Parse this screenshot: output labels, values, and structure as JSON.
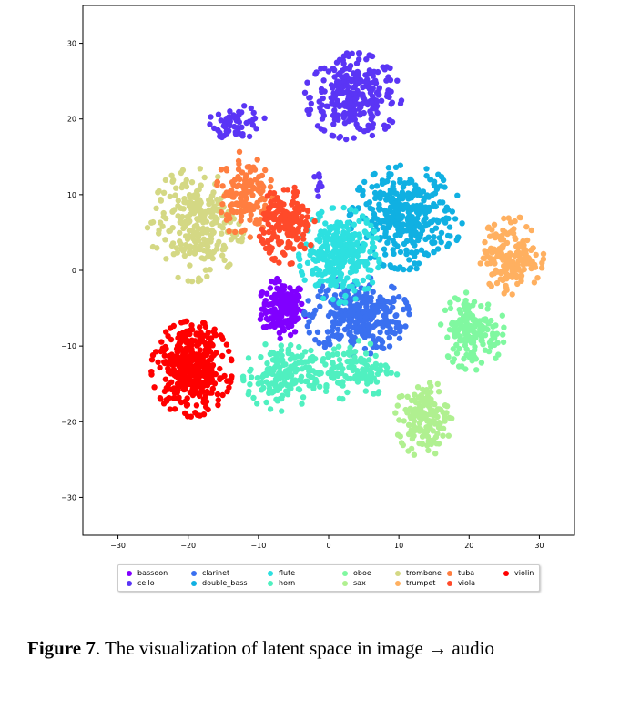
{
  "chart_data": {
    "type": "scatter",
    "title": "",
    "xlabel": "",
    "ylabel": "",
    "xlim": [
      -35,
      35
    ],
    "ylim": [
      -35,
      35
    ],
    "xticks": [
      -30,
      -20,
      -10,
      0,
      10,
      20,
      30
    ],
    "yticks": [
      30,
      20,
      10,
      0,
      -10,
      -20,
      -30
    ],
    "xtick_labels": [
      "−30",
      "−20",
      "−10",
      "0",
      "10",
      "20",
      "30"
    ],
    "ytick_labels": [
      "30",
      "20",
      "10",
      "0",
      "−10",
      "−20",
      "−30"
    ],
    "grid": false,
    "legend_position": "bottom-center, below plot",
    "series": [
      {
        "name": "bassoon",
        "color": "#8000ff",
        "clusters": [
          {
            "cx": -6.5,
            "cy": -5,
            "rx": 3,
            "ry": 3.5,
            "n": 170
          }
        ]
      },
      {
        "name": "cello",
        "color": "#5a35f5",
        "clusters": [
          {
            "cx": 3.5,
            "cy": 23,
            "rx": 6,
            "ry": 5,
            "n": 280
          },
          {
            "cx": -13,
            "cy": 19.5,
            "rx": 3.5,
            "ry": 2,
            "n": 60
          },
          {
            "cx": -1.5,
            "cy": 11.5,
            "rx": 0.8,
            "ry": 1.5,
            "n": 10
          }
        ]
      },
      {
        "name": "clarinet",
        "color": "#3a70f0",
        "clusters": [
          {
            "cx": 4,
            "cy": -6,
            "rx": 6.5,
            "ry": 4.5,
            "n": 300
          }
        ]
      },
      {
        "name": "double_bass",
        "color": "#10b0e2",
        "clusters": [
          {
            "cx": 11,
            "cy": 7,
            "rx": 7,
            "ry": 6,
            "n": 360
          }
        ]
      },
      {
        "name": "flute",
        "color": "#2de0e0",
        "clusters": [
          {
            "cx": 1.5,
            "cy": 2,
            "rx": 5,
            "ry": 5.5,
            "n": 280
          }
        ]
      },
      {
        "name": "horn",
        "color": "#50f0c0",
        "clusters": [
          {
            "cx": -7,
            "cy": -14,
            "rx": 4.5,
            "ry": 4,
            "n": 160
          },
          {
            "cx": 3,
            "cy": -13,
            "rx": 6,
            "ry": 3.5,
            "n": 130
          }
        ]
      },
      {
        "name": "oboe",
        "color": "#80f8a0",
        "clusters": [
          {
            "cx": 20.5,
            "cy": -8,
            "rx": 4,
            "ry": 4.5,
            "n": 160
          }
        ]
      },
      {
        "name": "sax",
        "color": "#b0f090",
        "clusters": [
          {
            "cx": 13.5,
            "cy": -19.5,
            "rx": 3.5,
            "ry": 4.5,
            "n": 150
          }
        ]
      },
      {
        "name": "trombone",
        "color": "#d4d884",
        "clusters": [
          {
            "cx": -19,
            "cy": 6,
            "rx": 6,
            "ry": 6.5,
            "n": 260
          }
        ]
      },
      {
        "name": "trumpet",
        "color": "#ffb060",
        "clusters": [
          {
            "cx": 26,
            "cy": 2,
            "rx": 4,
            "ry": 4.5,
            "n": 180
          }
        ]
      },
      {
        "name": "tuba",
        "color": "#ff7e40",
        "clusters": [
          {
            "cx": -12,
            "cy": 10,
            "rx": 3.5,
            "ry": 5,
            "n": 150
          }
        ]
      },
      {
        "name": "viola",
        "color": "#ff4a2a",
        "clusters": [
          {
            "cx": -6,
            "cy": 6,
            "rx": 3.5,
            "ry": 4.5,
            "n": 170
          }
        ]
      },
      {
        "name": "violin",
        "color": "#ff0000",
        "clusters": [
          {
            "cx": -19.5,
            "cy": -13,
            "rx": 5,
            "ry": 5.5,
            "n": 400
          }
        ]
      }
    ]
  },
  "caption": {
    "label": "Figure 7",
    "text": ". The visualization of latent space in image → audio"
  }
}
